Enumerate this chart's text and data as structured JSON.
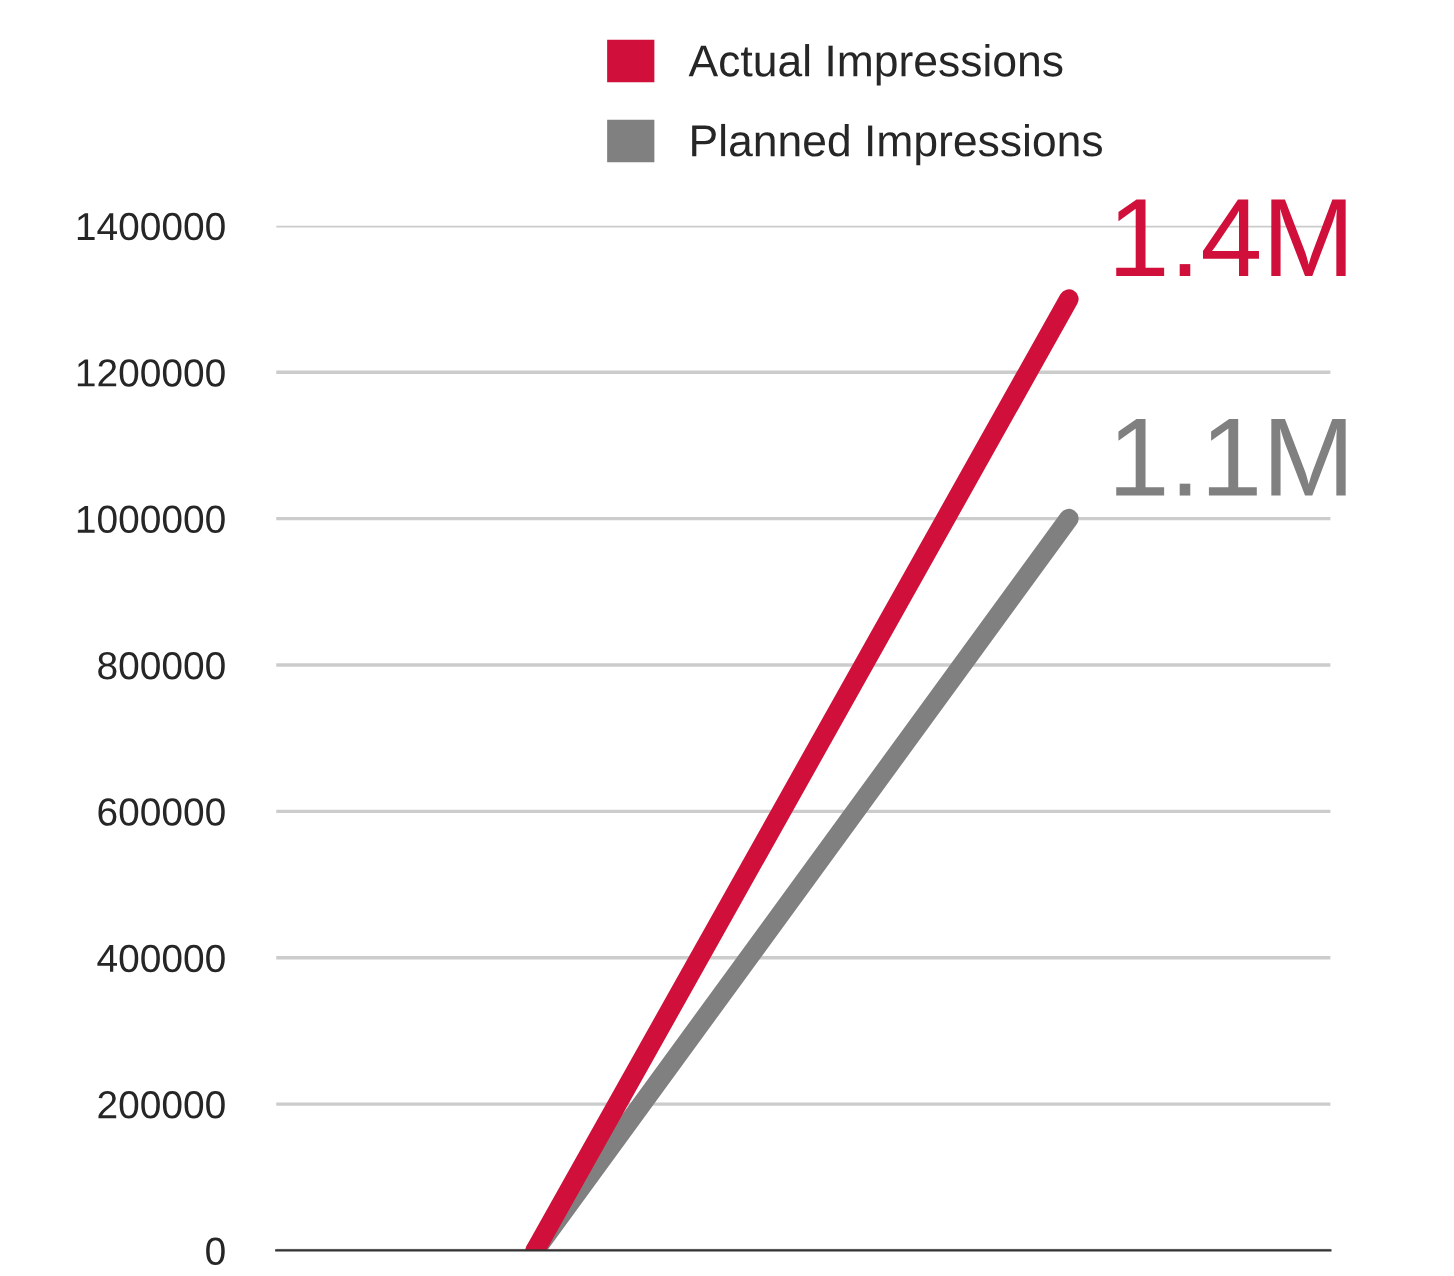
{
  "chart_data": {
    "type": "line",
    "categories": [
      null,
      null
    ],
    "series": [
      {
        "name": "Planned Impressions",
        "color": "#808080",
        "values": [
          0,
          1000000
        ]
      },
      {
        "name": "Actual Impressions",
        "color": "#d0103a",
        "values": [
          0,
          1300000
        ]
      }
    ],
    "annotations": [
      "1.1M",
      "1.4M"
    ],
    "ylim": [
      0,
      1400000
    ],
    "yticks": [
      0,
      200000,
      400000,
      600000,
      800000,
      1000000,
      1200000,
      1400000
    ],
    "grid": "y",
    "legend": "top",
    "marker": "none",
    "line_style": "solid"
  }
}
